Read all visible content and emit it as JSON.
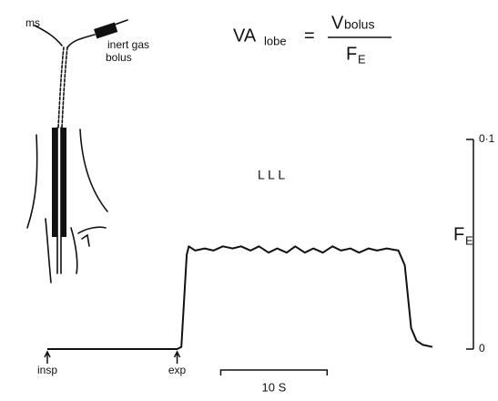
{
  "chart_data": {
    "type": "line",
    "formula": {
      "lhs": "VA",
      "lhs_sub": "lobe",
      "equals": "=",
      "numerator": "V",
      "numerator_sub": "bolus",
      "denominator": "F",
      "denominator_sub": "E"
    },
    "diagram_labels": [
      "ms",
      "inert gas",
      "bolus"
    ],
    "label": "L L L",
    "ylabel": "F",
    "ylabel_sub": "E",
    "x": [
      0,
      12.2,
      12.6,
      13.1,
      13.3,
      13.9,
      14.8,
      15.6,
      16.5,
      17.4,
      18.2,
      19.1,
      19.9,
      20.8,
      21.6,
      22.5,
      23.3,
      24.2,
      25.0,
      25.9,
      26.8,
      27.6,
      28.5,
      29.3,
      30.2,
      31.0,
      31.9,
      33.0,
      33.6,
      34.2,
      34.7,
      35.3,
      36.2
    ],
    "values": [
      0,
      0,
      0.001,
      0.045,
      0.049,
      0.047,
      0.048,
      0.047,
      0.049,
      0.048,
      0.049,
      0.047,
      0.049,
      0.046,
      0.048,
      0.046,
      0.049,
      0.046,
      0.048,
      0.046,
      0.049,
      0.047,
      0.048,
      0.046,
      0.048,
      0.047,
      0.048,
      0.047,
      0.04,
      0.01,
      0.004,
      0.002,
      0.001
    ],
    "color": "#111111",
    "xlim": [
      0,
      36.2
    ],
    "ylim": [
      0,
      0.1
    ],
    "yticks": [
      0,
      {
        "value": 0.1,
        "label": "0·1"
      }
    ],
    "annotations": [
      {
        "text": "insp",
        "x": 0
      },
      {
        "text": "exp",
        "x": 12.2
      }
    ],
    "scale_bar": {
      "label": "10 S",
      "start": 16.3,
      "length": 10
    }
  }
}
